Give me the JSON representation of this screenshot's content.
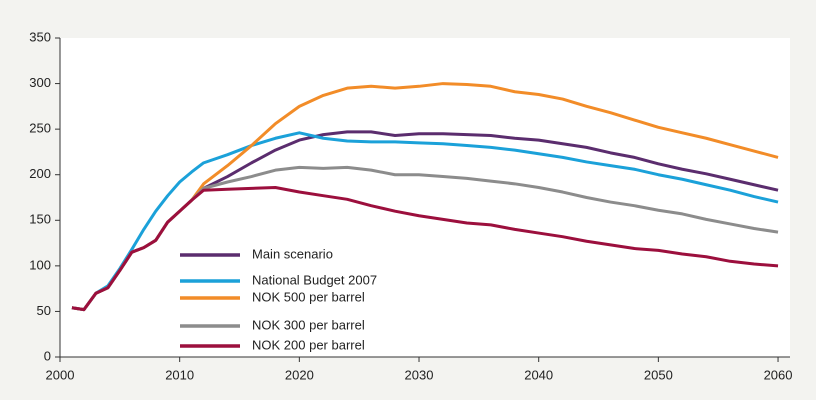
{
  "chart_data": {
    "type": "line",
    "x": [
      2001,
      2002,
      2003,
      2004,
      2005,
      2006,
      2007,
      2008,
      2009,
      2010,
      2011,
      2012,
      2014,
      2016,
      2018,
      2020,
      2022,
      2024,
      2026,
      2028,
      2030,
      2032,
      2034,
      2036,
      2038,
      2040,
      2042,
      2044,
      2046,
      2048,
      2050,
      2052,
      2054,
      2056,
      2058,
      2060
    ],
    "series": [
      {
        "name": "Main scenario",
        "color": "#5b2d6e",
        "values": [
          54,
          52,
          70,
          76,
          95,
          115,
          120,
          128,
          148,
          160,
          172,
          185,
          198,
          213,
          227,
          238,
          244,
          247,
          247,
          243,
          245,
          245,
          244,
          243,
          240,
          238,
          234,
          230,
          224,
          219,
          212,
          206,
          201,
          195,
          189,
          183
        ]
      },
      {
        "name": "National Budget 2007",
        "color": "#1ba1d9",
        "values": [
          54,
          52,
          70,
          78,
          97,
          118,
          140,
          160,
          177,
          192,
          203,
          213,
          222,
          232,
          240,
          246,
          240,
          237,
          236,
          236,
          235,
          234,
          232,
          230,
          227,
          223,
          219,
          214,
          210,
          206,
          200,
          195,
          189,
          183,
          176,
          170
        ]
      },
      {
        "name": "NOK 500 per barrel",
        "color": "#f28c28",
        "values": [
          54,
          52,
          70,
          76,
          95,
          115,
          120,
          128,
          148,
          160,
          172,
          190,
          210,
          232,
          256,
          275,
          287,
          295,
          297,
          295,
          297,
          300,
          299,
          297,
          291,
          288,
          283,
          275,
          268,
          260,
          252,
          246,
          240,
          233,
          226,
          219
        ]
      },
      {
        "name": "NOK 300 per barrel",
        "color": "#8c8c8c",
        "values": [
          54,
          52,
          70,
          76,
          95,
          115,
          120,
          128,
          148,
          160,
          172,
          185,
          192,
          198,
          205,
          208,
          207,
          208,
          205,
          200,
          200,
          198,
          196,
          193,
          190,
          186,
          181,
          175,
          170,
          166,
          161,
          157,
          151,
          146,
          141,
          137
        ]
      },
      {
        "name": "NOK 200 per barrel",
        "color": "#9c0f3d",
        "values": [
          54,
          52,
          70,
          76,
          95,
          115,
          120,
          128,
          148,
          160,
          172,
          183,
          184,
          185,
          186,
          181,
          177,
          173,
          166,
          160,
          155,
          151,
          147,
          145,
          140,
          136,
          132,
          127,
          123,
          119,
          117,
          113,
          110,
          105,
          102,
          100
        ]
      }
    ],
    "xlim": [
      2000,
      2061
    ],
    "xticks": [
      2000,
      2010,
      2020,
      2030,
      2040,
      2050,
      2060
    ],
    "ylim": [
      0,
      350
    ],
    "yticks": [
      0,
      50,
      100,
      150,
      200,
      250,
      300,
      350
    ]
  }
}
